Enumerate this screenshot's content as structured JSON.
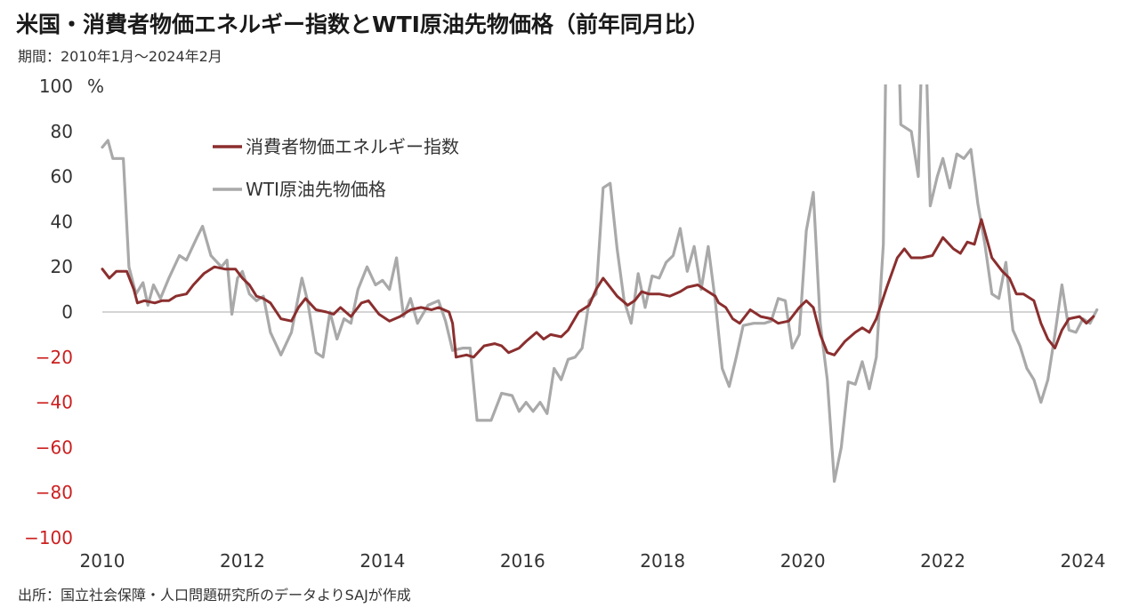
{
  "header": {
    "title": "米国・消費者物価エネルギー指数とWTI原油先物価格（前年同月比）",
    "subtitle": "期間：2010年1月～2024年2月"
  },
  "footer": {
    "source": "出所：国立社会保障・人口問題研究所のデータよりSAJが作成"
  },
  "colors": {
    "energy_cpi": "#8b2e2e",
    "wti": "#a9a9a9",
    "zero_line": "#aaaaaa",
    "negative_tick": "#cc1f1f"
  },
  "chart_data": {
    "type": "line",
    "title": "米国・消費者物価エネルギー指数とWTI原油先物価格（前年同月比）",
    "ylabel": "%",
    "ylim": [
      -100,
      100
    ],
    "yticks": [
      100,
      80,
      60,
      40,
      20,
      0,
      -20,
      -40,
      -60,
      -80,
      -100
    ],
    "xticks": [
      2010,
      2012,
      2014,
      2016,
      2018,
      2020,
      2022,
      2024
    ],
    "xlim": [
      2010.0,
      2024.25
    ],
    "grid": false,
    "legend_position": "upper-left",
    "series": [
      {
        "name": "消費者物価エネルギー指数",
        "color": "#8b2e2e",
        "points": [
          [
            2010.0,
            19
          ],
          [
            2010.1,
            15
          ],
          [
            2010.2,
            18
          ],
          [
            2010.35,
            18
          ],
          [
            2010.45,
            10
          ],
          [
            2010.5,
            4
          ],
          [
            2010.6,
            5
          ],
          [
            2010.75,
            4
          ],
          [
            2010.85,
            5
          ],
          [
            2010.95,
            5
          ],
          [
            2011.05,
            7
          ],
          [
            2011.2,
            8
          ],
          [
            2011.3,
            12
          ],
          [
            2011.45,
            17
          ],
          [
            2011.6,
            20
          ],
          [
            2011.75,
            19
          ],
          [
            2011.9,
            19
          ],
          [
            2012.0,
            15
          ],
          [
            2012.1,
            12
          ],
          [
            2012.2,
            7
          ],
          [
            2012.3,
            6
          ],
          [
            2012.4,
            4
          ],
          [
            2012.55,
            -3
          ],
          [
            2012.7,
            -4
          ],
          [
            2012.8,
            2
          ],
          [
            2012.9,
            6
          ],
          [
            2013.05,
            1
          ],
          [
            2013.2,
            0
          ],
          [
            2013.3,
            -1
          ],
          [
            2013.4,
            2
          ],
          [
            2013.55,
            -2
          ],
          [
            2013.7,
            4
          ],
          [
            2013.8,
            5
          ],
          [
            2013.95,
            -1
          ],
          [
            2014.1,
            -4
          ],
          [
            2014.25,
            -2
          ],
          [
            2014.4,
            1
          ],
          [
            2014.55,
            2
          ],
          [
            2014.7,
            1
          ],
          [
            2014.8,
            2
          ],
          [
            2014.95,
            0
          ],
          [
            2015.0,
            -5
          ],
          [
            2015.05,
            -20
          ],
          [
            2015.2,
            -19
          ],
          [
            2015.3,
            -20
          ],
          [
            2015.45,
            -15
          ],
          [
            2015.6,
            -14
          ],
          [
            2015.7,
            -15
          ],
          [
            2015.8,
            -18
          ],
          [
            2015.95,
            -16
          ],
          [
            2016.05,
            -13
          ],
          [
            2016.2,
            -9
          ],
          [
            2016.3,
            -12
          ],
          [
            2016.4,
            -10
          ],
          [
            2016.55,
            -11
          ],
          [
            2016.65,
            -8
          ],
          [
            2016.8,
            0
          ],
          [
            2016.95,
            3
          ],
          [
            2017.05,
            10
          ],
          [
            2017.15,
            15
          ],
          [
            2017.25,
            11
          ],
          [
            2017.35,
            7
          ],
          [
            2017.5,
            3
          ],
          [
            2017.6,
            5
          ],
          [
            2017.7,
            9
          ],
          [
            2017.8,
            8
          ],
          [
            2017.95,
            8
          ],
          [
            2018.1,
            7
          ],
          [
            2018.25,
            9
          ],
          [
            2018.35,
            11
          ],
          [
            2018.5,
            12
          ],
          [
            2018.6,
            10
          ],
          [
            2018.75,
            7
          ],
          [
            2018.8,
            4
          ],
          [
            2018.9,
            2
          ],
          [
            2019.0,
            -3
          ],
          [
            2019.1,
            -5
          ],
          [
            2019.25,
            1
          ],
          [
            2019.4,
            -2
          ],
          [
            2019.55,
            -3
          ],
          [
            2019.65,
            -5
          ],
          [
            2019.8,
            -4
          ],
          [
            2019.95,
            2
          ],
          [
            2020.05,
            5
          ],
          [
            2020.15,
            2
          ],
          [
            2020.25,
            -10
          ],
          [
            2020.35,
            -18
          ],
          [
            2020.45,
            -19
          ],
          [
            2020.6,
            -13
          ],
          [
            2020.75,
            -9
          ],
          [
            2020.85,
            -7
          ],
          [
            2020.95,
            -9
          ],
          [
            2021.05,
            -3
          ],
          [
            2021.2,
            11
          ],
          [
            2021.35,
            24
          ],
          [
            2021.45,
            28
          ],
          [
            2021.55,
            24
          ],
          [
            2021.7,
            24
          ],
          [
            2021.85,
            25
          ],
          [
            2022.0,
            33
          ],
          [
            2022.15,
            28
          ],
          [
            2022.25,
            26
          ],
          [
            2022.35,
            31
          ],
          [
            2022.45,
            30
          ],
          [
            2022.55,
            41
          ],
          [
            2022.7,
            24
          ],
          [
            2022.85,
            18
          ],
          [
            2022.95,
            15
          ],
          [
            2023.05,
            8
          ],
          [
            2023.15,
            8
          ],
          [
            2023.3,
            5
          ],
          [
            2023.4,
            -5
          ],
          [
            2023.5,
            -12
          ],
          [
            2023.6,
            -16
          ],
          [
            2023.7,
            -8
          ],
          [
            2023.8,
            -3
          ],
          [
            2023.95,
            -2
          ],
          [
            2024.05,
            -5
          ],
          [
            2024.15,
            -2
          ]
        ]
      },
      {
        "name": "WTI原油先物価格",
        "color": "#a9a9a9",
        "points": [
          [
            2010.0,
            73
          ],
          [
            2010.08,
            76
          ],
          [
            2010.15,
            68
          ],
          [
            2010.3,
            68
          ],
          [
            2010.38,
            20
          ],
          [
            2010.48,
            8
          ],
          [
            2010.58,
            13
          ],
          [
            2010.65,
            3
          ],
          [
            2010.73,
            12
          ],
          [
            2010.83,
            6
          ],
          [
            2010.95,
            15
          ],
          [
            2011.1,
            25
          ],
          [
            2011.2,
            23
          ],
          [
            2011.35,
            33
          ],
          [
            2011.43,
            38
          ],
          [
            2011.55,
            25
          ],
          [
            2011.7,
            20
          ],
          [
            2011.78,
            23
          ],
          [
            2011.85,
            -1
          ],
          [
            2011.93,
            15
          ],
          [
            2012.0,
            18
          ],
          [
            2012.1,
            8
          ],
          [
            2012.2,
            5
          ],
          [
            2012.3,
            7
          ],
          [
            2012.4,
            -9
          ],
          [
            2012.55,
            -19
          ],
          [
            2012.7,
            -9
          ],
          [
            2012.85,
            15
          ],
          [
            2012.93,
            5
          ],
          [
            2013.05,
            -18
          ],
          [
            2013.15,
            -20
          ],
          [
            2013.25,
            0
          ],
          [
            2013.35,
            -12
          ],
          [
            2013.45,
            -3
          ],
          [
            2013.55,
            -5
          ],
          [
            2013.65,
            10
          ],
          [
            2013.78,
            20
          ],
          [
            2013.9,
            12
          ],
          [
            2014.0,
            14
          ],
          [
            2014.1,
            10
          ],
          [
            2014.2,
            24
          ],
          [
            2014.3,
            -2
          ],
          [
            2014.4,
            6
          ],
          [
            2014.5,
            -5
          ],
          [
            2014.65,
            3
          ],
          [
            2014.8,
            5
          ],
          [
            2014.9,
            -4
          ],
          [
            2015.0,
            -17
          ],
          [
            2015.15,
            -16
          ],
          [
            2015.25,
            -16
          ],
          [
            2015.35,
            -48
          ],
          [
            2015.55,
            -48
          ],
          [
            2015.7,
            -36
          ],
          [
            2015.85,
            -37
          ],
          [
            2015.95,
            -44
          ],
          [
            2016.05,
            -40
          ],
          [
            2016.15,
            -44
          ],
          [
            2016.25,
            -40
          ],
          [
            2016.35,
            -45
          ],
          [
            2016.45,
            -25
          ],
          [
            2016.55,
            -30
          ],
          [
            2016.65,
            -21
          ],
          [
            2016.75,
            -20
          ],
          [
            2016.85,
            -16
          ],
          [
            2016.95,
            5
          ],
          [
            2017.05,
            8
          ],
          [
            2017.15,
            55
          ],
          [
            2017.25,
            57
          ],
          [
            2017.35,
            28
          ],
          [
            2017.45,
            5
          ],
          [
            2017.55,
            -5
          ],
          [
            2017.65,
            17
          ],
          [
            2017.75,
            2
          ],
          [
            2017.85,
            16
          ],
          [
            2017.95,
            15
          ],
          [
            2018.05,
            22
          ],
          [
            2018.15,
            25
          ],
          [
            2018.25,
            37
          ],
          [
            2018.35,
            18
          ],
          [
            2018.45,
            29
          ],
          [
            2018.55,
            10
          ],
          [
            2018.65,
            29
          ],
          [
            2018.75,
            5
          ],
          [
            2018.85,
            -25
          ],
          [
            2018.95,
            -33
          ],
          [
            2019.05,
            -20
          ],
          [
            2019.15,
            -6
          ],
          [
            2019.3,
            -5
          ],
          [
            2019.45,
            -5
          ],
          [
            2019.55,
            -4
          ],
          [
            2019.65,
            6
          ],
          [
            2019.75,
            5
          ],
          [
            2019.85,
            -16
          ],
          [
            2019.95,
            -10
          ],
          [
            2020.05,
            36
          ],
          [
            2020.15,
            53
          ],
          [
            2020.25,
            -5
          ],
          [
            2020.35,
            -30
          ],
          [
            2020.45,
            -75
          ],
          [
            2020.55,
            -60
          ],
          [
            2020.65,
            -31
          ],
          [
            2020.75,
            -32
          ],
          [
            2020.85,
            -22
          ],
          [
            2020.95,
            -34
          ],
          [
            2021.05,
            -20
          ],
          [
            2021.15,
            30
          ],
          [
            2021.22,
            190
          ],
          [
            2021.32,
            180
          ],
          [
            2021.4,
            83
          ],
          [
            2021.55,
            80
          ],
          [
            2021.65,
            60
          ],
          [
            2021.73,
            150
          ],
          [
            2021.82,
            47
          ],
          [
            2021.92,
            60
          ],
          [
            2022.0,
            68
          ],
          [
            2022.1,
            55
          ],
          [
            2022.2,
            70
          ],
          [
            2022.3,
            68
          ],
          [
            2022.4,
            72
          ],
          [
            2022.5,
            48
          ],
          [
            2022.6,
            30
          ],
          [
            2022.7,
            8
          ],
          [
            2022.8,
            6
          ],
          [
            2022.9,
            22
          ],
          [
            2023.0,
            -8
          ],
          [
            2023.1,
            -15
          ],
          [
            2023.2,
            -25
          ],
          [
            2023.3,
            -30
          ],
          [
            2023.4,
            -40
          ],
          [
            2023.5,
            -30
          ],
          [
            2023.6,
            -10
          ],
          [
            2023.7,
            12
          ],
          [
            2023.8,
            -8
          ],
          [
            2023.9,
            -9
          ],
          [
            2024.0,
            -3
          ],
          [
            2024.1,
            -5
          ],
          [
            2024.2,
            1
          ]
        ]
      }
    ]
  }
}
